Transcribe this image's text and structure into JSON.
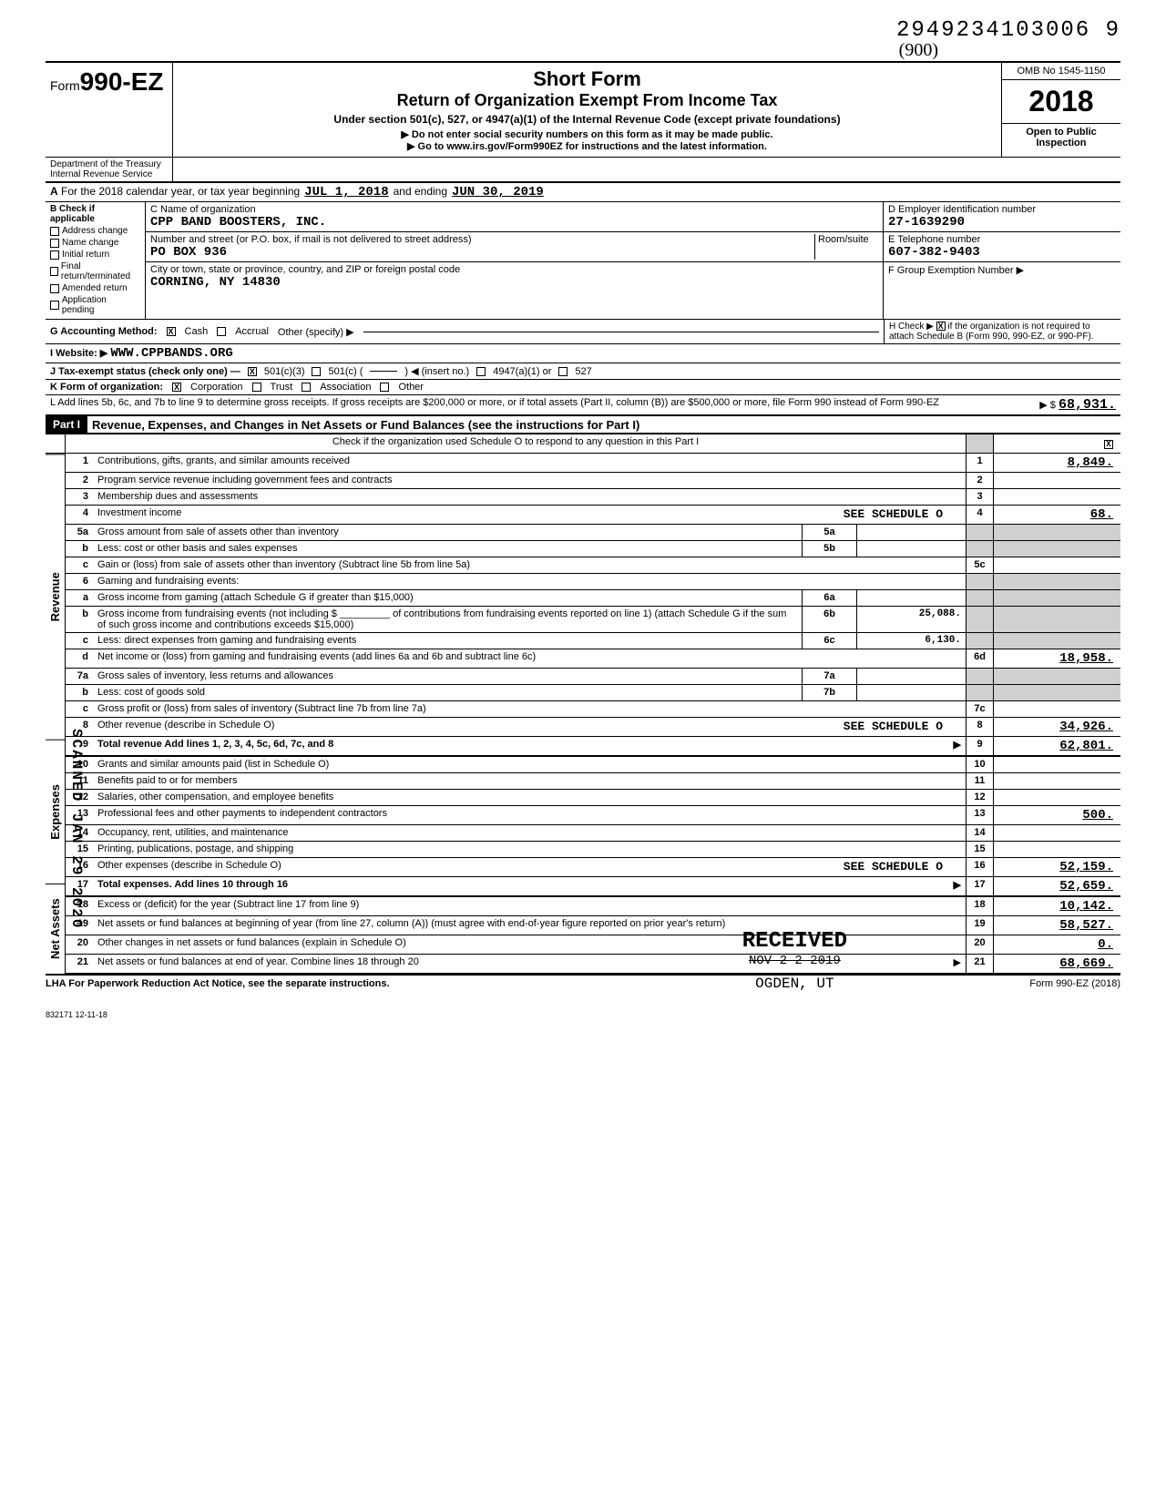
{
  "top_number": "2949234103006 9",
  "handwritten_mark": "(900)",
  "form": {
    "prefix": "Form",
    "number": "990-EZ",
    "title1": "Short Form",
    "title2": "Return of Organization Exempt From Income Tax",
    "subtitle": "Under section 501(c), 527, or 4947(a)(1) of the Internal Revenue Code (except private foundations)",
    "instruction1": "▶ Do not enter social security numbers on this form as it may be made public.",
    "instruction2": "▶ Go to www.irs.gov/Form990EZ for instructions and the latest information.",
    "omb": "OMB No 1545-1150",
    "year": "2018",
    "inspection": "Open to Public Inspection",
    "dept1": "Department of the Treasury",
    "dept2": "Internal Revenue Service"
  },
  "line_a": {
    "prefix": "A",
    "text": "For the 2018 calendar year, or tax year beginning",
    "begin": "JUL 1, 2018",
    "mid": "and ending",
    "end": "JUN 30, 2019"
  },
  "section_b": {
    "header": "B  Check if applicable",
    "items": [
      {
        "label": "Address change",
        "checked": false
      },
      {
        "label": "Name change",
        "checked": false
      },
      {
        "label": "Initial return",
        "checked": false
      },
      {
        "label": "Final return/terminated",
        "checked": false
      },
      {
        "label": "Amended return",
        "checked": false
      },
      {
        "label": "Application pending",
        "checked": false
      }
    ]
  },
  "section_c": {
    "label_name": "C Name of organization",
    "name": "CPP BAND BOOSTERS, INC.",
    "label_street": "Number and street (or P.O. box, if mail is not delivered to street address)",
    "room_label": "Room/suite",
    "street": "PO BOX 936",
    "label_city": "City or town, state or province, country, and ZIP or foreign postal code",
    "city": "CORNING, NY  14830"
  },
  "section_de": {
    "d_label": "D Employer identification number",
    "d_value": "27-1639290",
    "e_label": "E Telephone number",
    "e_value": "607-382-9403",
    "f_label": "F Group Exemption Number ▶",
    "f_value": ""
  },
  "line_g": {
    "label": "G  Accounting Method:",
    "cash": "Cash",
    "accrual": "Accrual",
    "other": "Other (specify) ▶"
  },
  "line_h": {
    "text": "H Check ▶",
    "suffix": "if the organization is not required to attach Schedule B (Form 990, 990-EZ, or 990-PF)."
  },
  "line_i": {
    "label": "I   Website: ▶",
    "value": "WWW.CPPBANDS.ORG"
  },
  "line_j": {
    "label": "J   Tax-exempt status (check only one) —",
    "opt1": "501(c)(3)",
    "opt2": "501(c) (",
    "opt2b": ") ◀ (insert no.)",
    "opt3": "4947(a)(1) or",
    "opt4": "527"
  },
  "line_k": {
    "label": "K  Form of organization:",
    "corp": "Corporation",
    "trust": "Trust",
    "assoc": "Association",
    "other": "Other"
  },
  "line_l": {
    "text": "L  Add lines 5b, 6c, and 7b to line 9 to determine gross receipts. If gross receipts are $200,000 or more, or if total assets (Part II, column (B)) are $500,000 or more, file Form 990 instead of Form 990-EZ",
    "arrow": "▶  $",
    "value": "68,931."
  },
  "part1": {
    "label": "Part I",
    "title": "Revenue, Expenses, and Changes in Net Assets or Fund Balances (see the instructions for Part I)",
    "check_text": "Check if the organization used Schedule O to respond to any question in this Part I"
  },
  "sections": {
    "revenue": "Revenue",
    "expenses": "Expenses",
    "netassets": "Net Assets"
  },
  "lines": [
    {
      "n": "1",
      "desc": "Contributions, gifts, grants, and similar amounts received",
      "col": "1",
      "val": "8,849."
    },
    {
      "n": "2",
      "desc": "Program service revenue including government fees and contracts",
      "col": "2",
      "val": ""
    },
    {
      "n": "3",
      "desc": "Membership dues and assessments",
      "col": "3",
      "val": ""
    },
    {
      "n": "4",
      "desc": "Investment income",
      "note": "SEE SCHEDULE O",
      "col": "4",
      "val": "68."
    },
    {
      "n": "5a",
      "desc": "Gross amount from sale of assets other than inventory",
      "subcol": "5a",
      "subval": ""
    },
    {
      "n": "b",
      "desc": "Less: cost or other basis and sales expenses",
      "subcol": "5b",
      "subval": ""
    },
    {
      "n": "c",
      "desc": "Gain or (loss) from sale of assets other than inventory (Subtract line 5b from line 5a)",
      "col": "5c",
      "val": ""
    },
    {
      "n": "6",
      "desc": "Gaming and fundraising events:"
    },
    {
      "n": "a",
      "desc": "Gross income from gaming (attach Schedule G if greater than $15,000)",
      "subcol": "6a",
      "subval": ""
    },
    {
      "n": "b",
      "desc": "Gross income from fundraising events (not including $ _________ of contributions from fundraising events reported on line 1) (attach Schedule G if the sum of such gross income and contributions exceeds $15,000)",
      "subcol": "6b",
      "subval": "25,088."
    },
    {
      "n": "c",
      "desc": "Less: direct expenses from gaming and fundraising events",
      "subcol": "6c",
      "subval": "6,130."
    },
    {
      "n": "d",
      "desc": "Net income or (loss) from gaming and fundraising events (add lines 6a and 6b and subtract line 6c)",
      "col": "6d",
      "val": "18,958."
    },
    {
      "n": "7a",
      "desc": "Gross sales of inventory, less returns and allowances",
      "subcol": "7a",
      "subval": ""
    },
    {
      "n": "b",
      "desc": "Less: cost of goods sold",
      "subcol": "7b",
      "subval": ""
    },
    {
      "n": "c",
      "desc": "Gross profit or (loss) from sales of inventory (Subtract line 7b from line 7a)",
      "col": "7c",
      "val": ""
    },
    {
      "n": "8",
      "desc": "Other revenue (describe in Schedule O)",
      "note": "SEE SCHEDULE O",
      "col": "8",
      "val": "34,926."
    },
    {
      "n": "9",
      "desc": "Total revenue  Add lines 1, 2, 3, 4, 5c, 6d, 7c, and 8",
      "arrow": "▶",
      "col": "9",
      "val": "62,801.",
      "bold": true
    },
    {
      "n": "10",
      "desc": "Grants and similar amounts paid (list in Schedule O)",
      "col": "10",
      "val": ""
    },
    {
      "n": "11",
      "desc": "Benefits paid to or for members",
      "col": "11",
      "val": ""
    },
    {
      "n": "12",
      "desc": "Salaries, other compensation, and employee benefits",
      "col": "12",
      "val": ""
    },
    {
      "n": "13",
      "desc": "Professional fees and other payments to independent contractors",
      "col": "13",
      "val": "500."
    },
    {
      "n": "14",
      "desc": "Occupancy, rent, utilities, and maintenance",
      "col": "14",
      "val": ""
    },
    {
      "n": "15",
      "desc": "Printing, publications, postage, and shipping",
      "col": "15",
      "val": ""
    },
    {
      "n": "16",
      "desc": "Other expenses (describe in Schedule O)",
      "note": "SEE SCHEDULE O",
      "col": "16",
      "val": "52,159."
    },
    {
      "n": "17",
      "desc": "Total expenses. Add lines 10 through 16",
      "arrow": "▶",
      "col": "17",
      "val": "52,659.",
      "bold": true
    },
    {
      "n": "18",
      "desc": "Excess or (deficit) for the year (Subtract line 17 from line 9)",
      "col": "18",
      "val": "10,142."
    },
    {
      "n": "19",
      "desc": "Net assets or fund balances at beginning of year (from line 27, column (A)) (must agree with end-of-year figure reported on prior year's return)",
      "col": "19",
      "val": "58,527."
    },
    {
      "n": "20",
      "desc": "Other changes in net assets or fund balances (explain in Schedule O)",
      "col": "20",
      "val": "0."
    },
    {
      "n": "21",
      "desc": "Net assets or fund balances at end of year. Combine lines 18 through 20",
      "arrow": "▶",
      "col": "21",
      "val": "68,669."
    }
  ],
  "footer": {
    "lha": "LHA  For Paperwork Reduction Act Notice, see the separate instructions.",
    "form": "Form 990-EZ (2018)",
    "code": "832171  12-11-18"
  },
  "stamps": {
    "received": "RECEIVED",
    "received_date": "NOV 2 2 2019",
    "ogden": "OGDEN, UT",
    "scanned": "SCANNED JAN 29 2020"
  }
}
